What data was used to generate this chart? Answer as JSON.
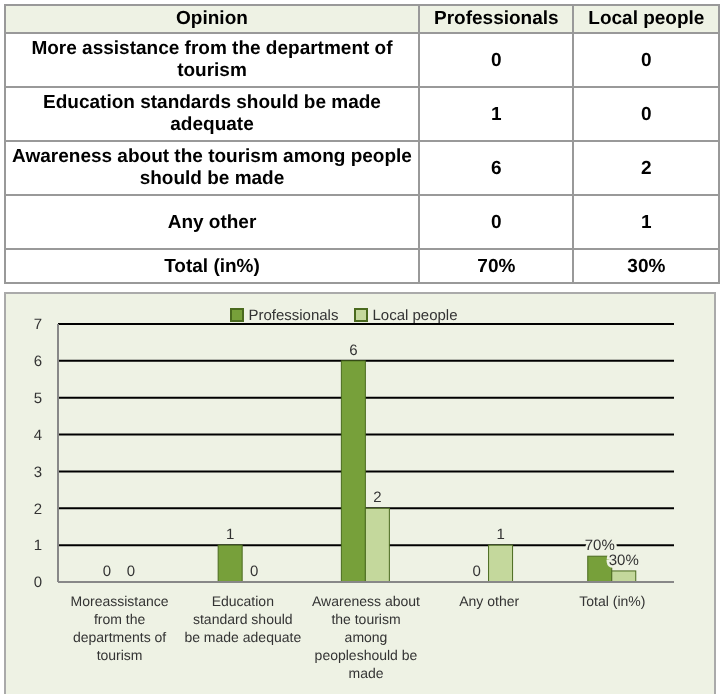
{
  "chart_data": [
    {
      "type": "other",
      "xlabel": "Opinion",
      "categories": [
        "More assistance from the department of tourism",
        "Education standards should be made adequate",
        "Awareness about the tourism among people should be made",
        "Any other",
        "Total (in%)"
      ],
      "series": [
        {
          "name": "Professionals",
          "values": [
            0,
            1,
            6,
            0,
            70
          ],
          "value_labels": [
            "0",
            "1",
            "6",
            "0",
            "70%"
          ]
        },
        {
          "name": "Local people",
          "values": [
            0,
            0,
            2,
            1,
            30
          ],
          "value_labels": [
            "0",
            "0",
            "2",
            "1",
            "30%"
          ]
        }
      ]
    },
    {
      "type": "bar",
      "categories": [
        "Moreassistance from the departments of tourism",
        "Education standard should be made adequate",
        "Awareness about the tourism among peopleshould be made",
        "Any other",
        "Total (in%)"
      ],
      "series": [
        {
          "name": "Professionals",
          "color": "#77a03a",
          "values": [
            0,
            1,
            6,
            0,
            0.7
          ],
          "value_labels": [
            "0",
            "1",
            "6",
            "0",
            "70%"
          ]
        },
        {
          "name": "Local people",
          "color": "#c4d89c",
          "values": [
            0,
            0,
            2,
            1,
            0.3
          ],
          "value_labels": [
            "0",
            "0",
            "2",
            "1",
            "30%"
          ]
        }
      ],
      "ylim": [
        0,
        7
      ],
      "yticks": [
        0,
        1,
        2,
        3,
        4,
        5,
        6,
        7
      ],
      "grid": "y",
      "legend": "top"
    }
  ]
}
